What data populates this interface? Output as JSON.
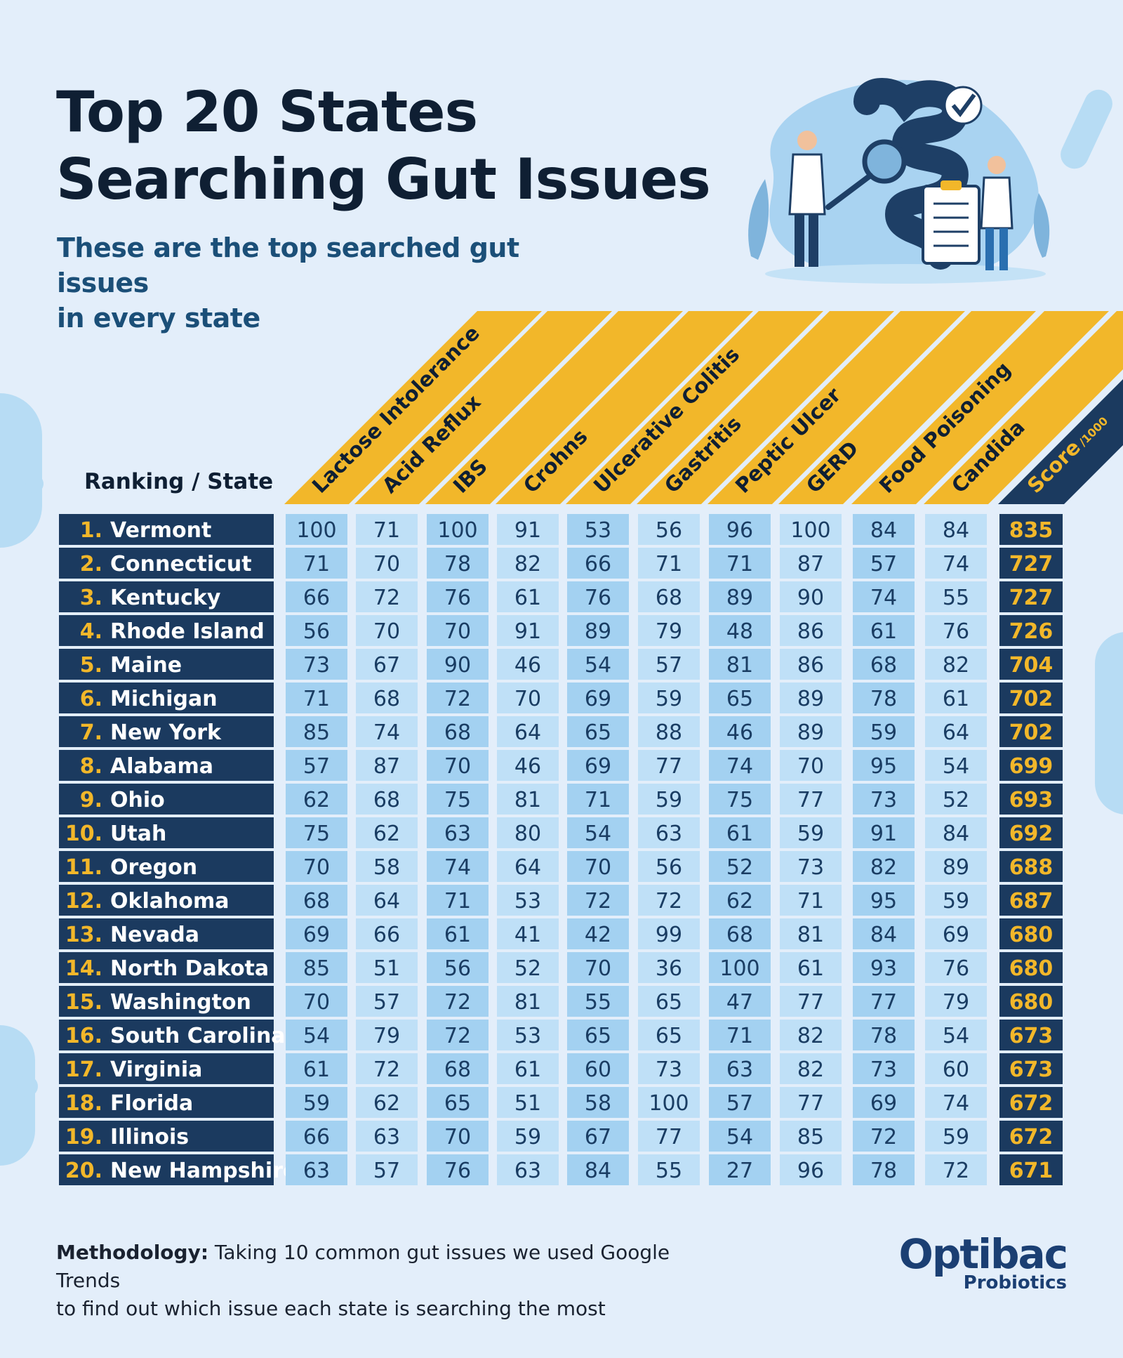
{
  "header": {
    "title_line1": "Top 20 States",
    "title_line2": "Searching Gut Issues",
    "subtitle_line1": "These are the top searched gut issues",
    "subtitle_line2": "in every state"
  },
  "colors": {
    "background": "#e3eefa",
    "navy": "#1b3a5f",
    "header_yellow": "#f2b72a",
    "cell_light_blue": "#bfe0f7",
    "cell_mid_blue": "#a3d1f1",
    "rank_number": "#f2b72a",
    "score_text": "#f2b72a"
  },
  "chart_data": {
    "type": "table",
    "row_header": "Ranking / State",
    "columns": [
      "Lactose Intolerance",
      "Acid Reflux",
      "IBS",
      "Crohns",
      "Ulcerative Colitis",
      "Gastritis",
      "Peptic Ulcer",
      "GERD",
      "Food Poisoning",
      "Candida"
    ],
    "score_label": "Score",
    "score_sub": "/1000",
    "rows": [
      {
        "rank": "1.",
        "state": "Vermont",
        "values": [
          100,
          71,
          100,
          91,
          53,
          56,
          96,
          100,
          84,
          84
        ],
        "score": 835
      },
      {
        "rank": "2.",
        "state": "Connecticut",
        "values": [
          71,
          70,
          78,
          82,
          66,
          71,
          71,
          87,
          57,
          74
        ],
        "score": 727
      },
      {
        "rank": "3.",
        "state": "Kentucky",
        "values": [
          66,
          72,
          76,
          61,
          76,
          68,
          89,
          90,
          74,
          55
        ],
        "score": 727
      },
      {
        "rank": "4.",
        "state": "Rhode Island",
        "values": [
          56,
          70,
          70,
          91,
          89,
          79,
          48,
          86,
          61,
          76
        ],
        "score": 726
      },
      {
        "rank": "5.",
        "state": "Maine",
        "values": [
          73,
          67,
          90,
          46,
          54,
          57,
          81,
          86,
          68,
          82
        ],
        "score": 704
      },
      {
        "rank": "6.",
        "state": "Michigan",
        "values": [
          71,
          68,
          72,
          70,
          69,
          59,
          65,
          89,
          78,
          61
        ],
        "score": 702
      },
      {
        "rank": "7.",
        "state": "New York",
        "values": [
          85,
          74,
          68,
          64,
          65,
          88,
          46,
          89,
          59,
          64
        ],
        "score": 702
      },
      {
        "rank": "8.",
        "state": "Alabama",
        "values": [
          57,
          87,
          70,
          46,
          69,
          77,
          74,
          70,
          95,
          54
        ],
        "score": 699
      },
      {
        "rank": "9.",
        "state": "Ohio",
        "values": [
          62,
          68,
          75,
          81,
          71,
          59,
          75,
          77,
          73,
          52
        ],
        "score": 693
      },
      {
        "rank": "10.",
        "state": "Utah",
        "values": [
          75,
          62,
          63,
          80,
          54,
          63,
          61,
          59,
          91,
          84
        ],
        "score": 692
      },
      {
        "rank": "11.",
        "state": "Oregon",
        "values": [
          70,
          58,
          74,
          64,
          70,
          56,
          52,
          73,
          82,
          89
        ],
        "score": 688
      },
      {
        "rank": "12.",
        "state": "Oklahoma",
        "values": [
          68,
          64,
          71,
          53,
          72,
          72,
          62,
          71,
          95,
          59
        ],
        "score": 687
      },
      {
        "rank": "13.",
        "state": "Nevada",
        "values": [
          69,
          66,
          61,
          41,
          42,
          99,
          68,
          81,
          84,
          69
        ],
        "score": 680
      },
      {
        "rank": "14.",
        "state": "North Dakota",
        "values": [
          85,
          51,
          56,
          52,
          70,
          36,
          100,
          61,
          93,
          76
        ],
        "score": 680
      },
      {
        "rank": "15.",
        "state": "Washington",
        "values": [
          70,
          57,
          72,
          81,
          55,
          65,
          47,
          77,
          77,
          79
        ],
        "score": 680
      },
      {
        "rank": "16.",
        "state": "South Carolina",
        "values": [
          54,
          79,
          72,
          53,
          65,
          65,
          71,
          82,
          78,
          54
        ],
        "score": 673
      },
      {
        "rank": "17.",
        "state": "Virginia",
        "values": [
          61,
          72,
          68,
          61,
          60,
          73,
          63,
          82,
          73,
          60
        ],
        "score": 673
      },
      {
        "rank": "18.",
        "state": "Florida",
        "values": [
          59,
          62,
          65,
          51,
          58,
          100,
          57,
          77,
          69,
          74
        ],
        "score": 672
      },
      {
        "rank": "19.",
        "state": "Illinois",
        "values": [
          66,
          63,
          70,
          59,
          67,
          77,
          54,
          85,
          72,
          59
        ],
        "score": 672
      },
      {
        "rank": "20.",
        "state": "New Hampshire",
        "values": [
          63,
          57,
          76,
          63,
          84,
          55,
          27,
          96,
          78,
          72
        ],
        "score": 671
      }
    ]
  },
  "footer": {
    "methodology_label": "Methodology:",
    "methodology_line1": "Taking 10 common gut issues we used Google Trends",
    "methodology_line2": "to find out which issue each state is searching the most",
    "logo_main": "Optibac",
    "logo_sub": "Probiotics"
  }
}
